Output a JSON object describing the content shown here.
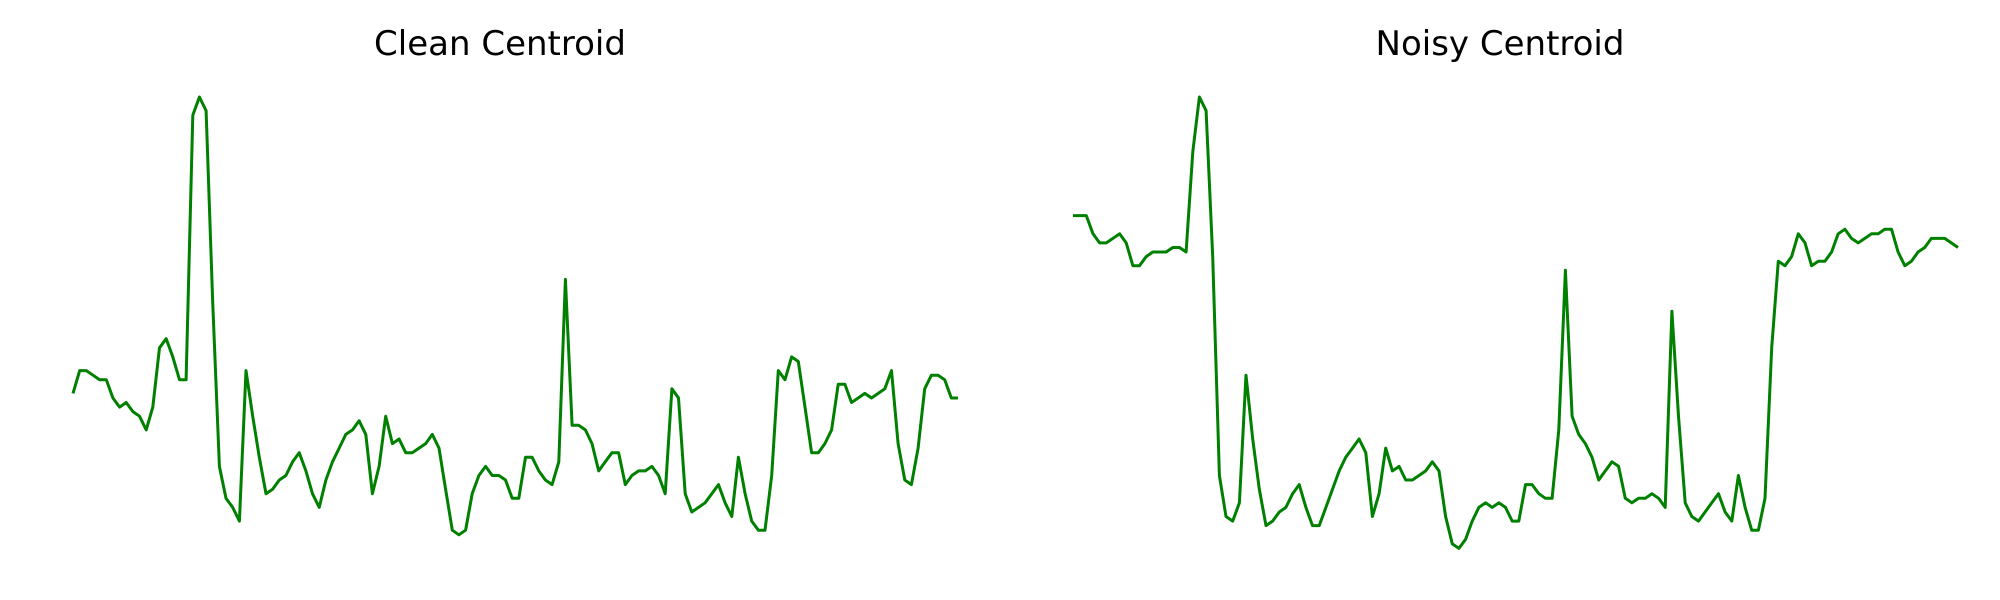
{
  "chart_data": [
    {
      "type": "line",
      "title": "Clean Centroid",
      "xlabel": "",
      "ylabel": "",
      "axes": "off",
      "grid": false,
      "color": "#008000",
      "ylim": [
        0,
        1
      ],
      "series": [
        {
          "values": [
            0.35,
            0.4,
            0.4,
            0.39,
            0.38,
            0.38,
            0.34,
            0.32,
            0.33,
            0.31,
            0.3,
            0.27,
            0.32,
            0.45,
            0.47,
            0.43,
            0.38,
            0.38,
            0.96,
            1.0,
            0.97,
            0.55,
            0.19,
            0.12,
            0.1,
            0.07,
            0.4,
            0.3,
            0.21,
            0.13,
            0.14,
            0.16,
            0.17,
            0.2,
            0.22,
            0.18,
            0.13,
            0.1,
            0.16,
            0.2,
            0.23,
            0.26,
            0.27,
            0.29,
            0.26,
            0.13,
            0.19,
            0.3,
            0.24,
            0.25,
            0.22,
            0.22,
            0.23,
            0.24,
            0.26,
            0.23,
            0.14,
            0.05,
            0.04,
            0.05,
            0.13,
            0.17,
            0.19,
            0.17,
            0.17,
            0.16,
            0.12,
            0.12,
            0.21,
            0.21,
            0.18,
            0.16,
            0.15,
            0.2,
            0.6,
            0.28,
            0.28,
            0.27,
            0.24,
            0.18,
            0.2,
            0.22,
            0.22,
            0.15,
            0.17,
            0.18,
            0.18,
            0.19,
            0.17,
            0.13,
            0.36,
            0.34,
            0.13,
            0.09,
            0.1,
            0.11,
            0.13,
            0.15,
            0.11,
            0.08,
            0.21,
            0.13,
            0.07,
            0.05,
            0.05,
            0.17,
            0.4,
            0.38,
            0.43,
            0.42,
            0.32,
            0.22,
            0.22,
            0.24,
            0.27,
            0.37,
            0.37,
            0.33,
            0.34,
            0.35,
            0.34,
            0.35,
            0.36,
            0.4,
            0.24,
            0.16,
            0.15,
            0.23,
            0.36,
            0.39,
            0.39,
            0.38,
            0.34,
            0.34
          ]
        }
      ]
    },
    {
      "type": "line",
      "title": "Noisy Centroid",
      "xlabel": "",
      "ylabel": "",
      "axes": "off",
      "grid": false,
      "color": "#008000",
      "ylim": [
        0,
        1
      ],
      "series": [
        {
          "values": [
            0.74,
            0.74,
            0.74,
            0.7,
            0.68,
            0.68,
            0.69,
            0.7,
            0.68,
            0.63,
            0.63,
            0.65,
            0.66,
            0.66,
            0.66,
            0.67,
            0.67,
            0.66,
            0.88,
            1.0,
            0.97,
            0.65,
            0.17,
            0.08,
            0.07,
            0.11,
            0.39,
            0.25,
            0.14,
            0.06,
            0.07,
            0.09,
            0.1,
            0.13,
            0.15,
            0.1,
            0.06,
            0.06,
            0.1,
            0.14,
            0.18,
            0.21,
            0.23,
            0.25,
            0.22,
            0.08,
            0.13,
            0.23,
            0.18,
            0.19,
            0.16,
            0.16,
            0.17,
            0.18,
            0.2,
            0.18,
            0.08,
            0.02,
            0.01,
            0.03,
            0.07,
            0.1,
            0.11,
            0.1,
            0.11,
            0.1,
            0.07,
            0.07,
            0.15,
            0.15,
            0.13,
            0.12,
            0.12,
            0.27,
            0.62,
            0.3,
            0.26,
            0.24,
            0.21,
            0.16,
            0.18,
            0.2,
            0.19,
            0.12,
            0.11,
            0.12,
            0.12,
            0.13,
            0.12,
            0.1,
            0.53,
            0.3,
            0.11,
            0.08,
            0.07,
            0.09,
            0.11,
            0.13,
            0.09,
            0.07,
            0.17,
            0.1,
            0.05,
            0.05,
            0.12,
            0.45,
            0.64,
            0.63,
            0.65,
            0.7,
            0.68,
            0.63,
            0.64,
            0.64,
            0.66,
            0.7,
            0.71,
            0.69,
            0.68,
            0.69,
            0.7,
            0.7,
            0.71,
            0.71,
            0.66,
            0.63,
            0.64,
            0.66,
            0.67,
            0.69,
            0.69,
            0.69,
            0.68,
            0.67
          ]
        }
      ]
    }
  ]
}
